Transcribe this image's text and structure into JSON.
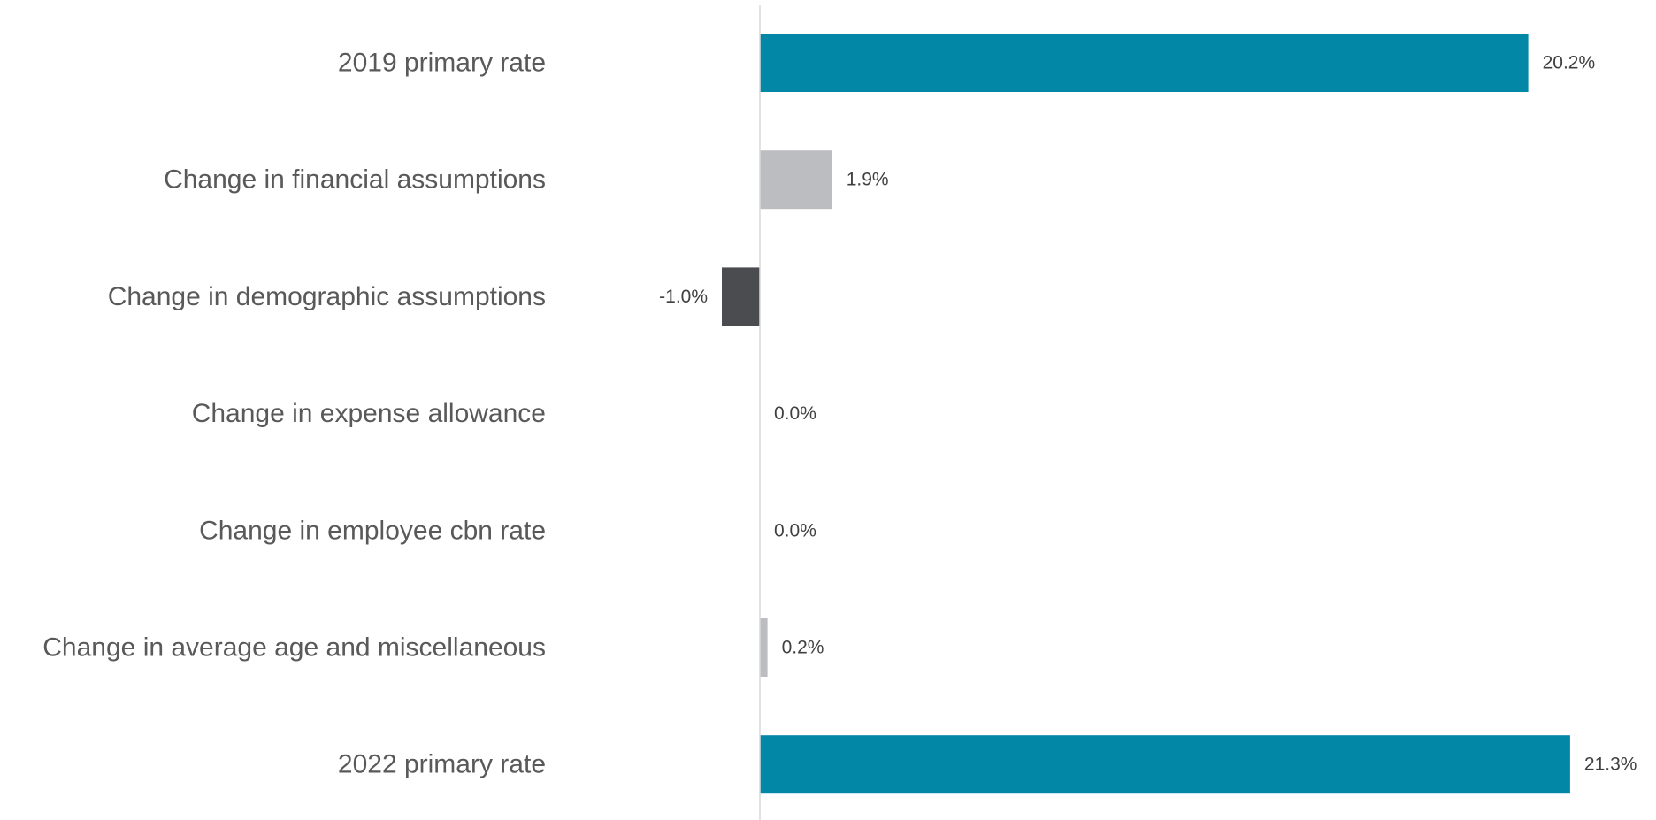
{
  "chart_data": {
    "type": "bar",
    "orientation": "horizontal",
    "title": "",
    "xlabel": "",
    "ylabel": "",
    "grid": false,
    "legend": "none",
    "xlim": [
      -1.0,
      21.3
    ],
    "categories": [
      "2019 primary rate",
      "Change in financial assumptions",
      "Change in demographic assumptions",
      "Change in expense allowance",
      "Change in employee cbn rate",
      "Change in average age and miscellaneous",
      "2022 primary rate"
    ],
    "values": [
      20.2,
      1.9,
      -1.0,
      0.0,
      0.0,
      0.2,
      21.3
    ],
    "data_labels": [
      "20.2%",
      "1.9%",
      "-1.0%",
      "0.0%",
      "0.0%",
      "0.2%",
      "21.3%"
    ],
    "colors": [
      "#0287a6",
      "#bcbdc0",
      "#4b4c4f",
      "#bcbdc0",
      "#bcbdc0",
      "#bcbdc0",
      "#0287a6"
    ],
    "axis_color": "#d9d9d9"
  }
}
